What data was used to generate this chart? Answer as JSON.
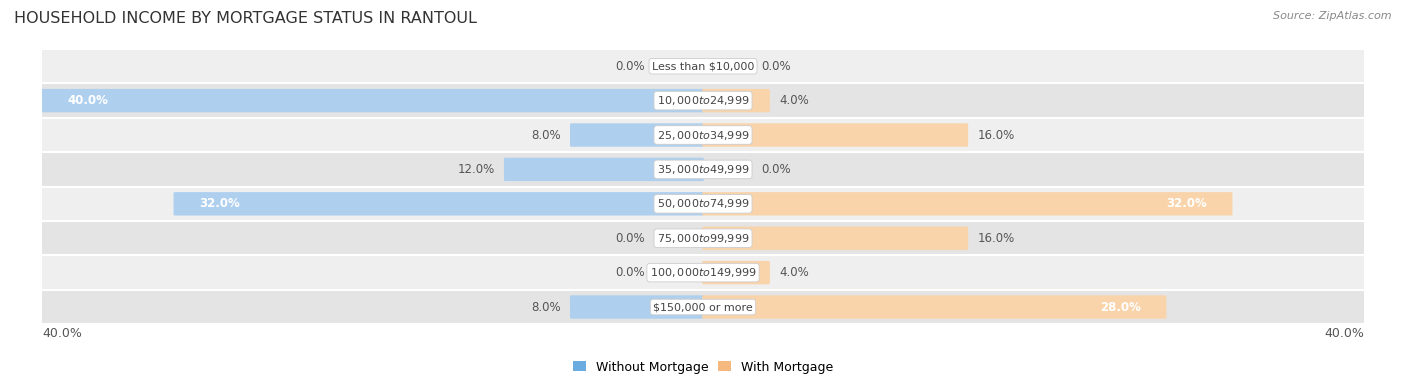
{
  "title": "HOUSEHOLD INCOME BY MORTGAGE STATUS IN RANTOUL",
  "source": "Source: ZipAtlas.com",
  "categories": [
    "Less than $10,000",
    "$10,000 to $24,999",
    "$25,000 to $34,999",
    "$35,000 to $49,999",
    "$50,000 to $74,999",
    "$75,000 to $99,999",
    "$100,000 to $149,999",
    "$150,000 or more"
  ],
  "without_mortgage": [
    0.0,
    40.0,
    8.0,
    12.0,
    32.0,
    0.0,
    0.0,
    8.0
  ],
  "with_mortgage": [
    0.0,
    4.0,
    16.0,
    0.0,
    32.0,
    16.0,
    4.0,
    28.0
  ],
  "color_without": "#6aace0",
  "color_with": "#f5b97f",
  "color_without_light": "#aed0ee",
  "color_with_light": "#f9d4ab",
  "row_bg_light": "#efefef",
  "row_bg_dark": "#e4e4e4",
  "axis_limit": 40.0,
  "legend_without": "Without Mortgage",
  "legend_with": "With Mortgage",
  "title_fontsize": 11.5,
  "label_fontsize": 8.5,
  "category_fontsize": 8.0,
  "footer_fontsize": 9,
  "source_fontsize": 8
}
